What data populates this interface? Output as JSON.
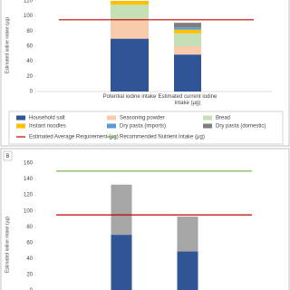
{
  "chart_data": [
    {
      "type": "bar",
      "stacked": true,
      "ylabel": "Estimated iodine intake (μg)",
      "categories": [
        "Potential iodine intake",
        "Estimated current iodine intake (μg)"
      ],
      "series": [
        {
          "name": "Household salt",
          "color": "#2f5597",
          "values": [
            70,
            49
          ]
        },
        {
          "name": "Seasoning powder",
          "color": "#f8cbad",
          "values": [
            25,
            11
          ]
        },
        {
          "name": "Bread",
          "color": "#c5e0b4",
          "values": [
            20,
            17
          ]
        },
        {
          "name": "Instant noodles",
          "color": "#ffc000",
          "values": [
            5,
            5
          ]
        },
        {
          "name": "Dry pasta (imports)",
          "color": "#5b9bd5",
          "values": [
            0,
            3
          ]
        },
        {
          "name": "Dry pasta (domestic)",
          "color": "#7f7f7f",
          "values": [
            0,
            6
          ]
        }
      ],
      "reference_lines": [
        {
          "value": 95,
          "color": "#c00000"
        }
      ],
      "ylim": [
        0,
        120
      ],
      "yticks": [
        0,
        20,
        40,
        60,
        80,
        100,
        120
      ]
    },
    {
      "type": "bar",
      "stacked": true,
      "panel_label": "B",
      "ylabel": "Estimated iodine intake (μg)",
      "series": [
        {
          "color": "#2f5597",
          "values": [
            70,
            49
          ]
        },
        {
          "color": "#a6a6a6",
          "values": [
            63,
            44
          ]
        }
      ],
      "reference_lines": [
        {
          "value": 95,
          "color": "#c00000"
        },
        {
          "value": 150,
          "color": "#70ad47"
        }
      ],
      "ylim": [
        0,
        160
      ],
      "yticks": [
        0,
        20,
        40,
        60,
        80,
        100,
        120,
        140,
        160
      ]
    }
  ],
  "legend_lines": [
    {
      "name": "Estimated Average Requirement (μg)",
      "color": "#c00000"
    },
    {
      "name": "Recommended Nutrient Intake (μg)",
      "color": "#70ad47"
    }
  ]
}
